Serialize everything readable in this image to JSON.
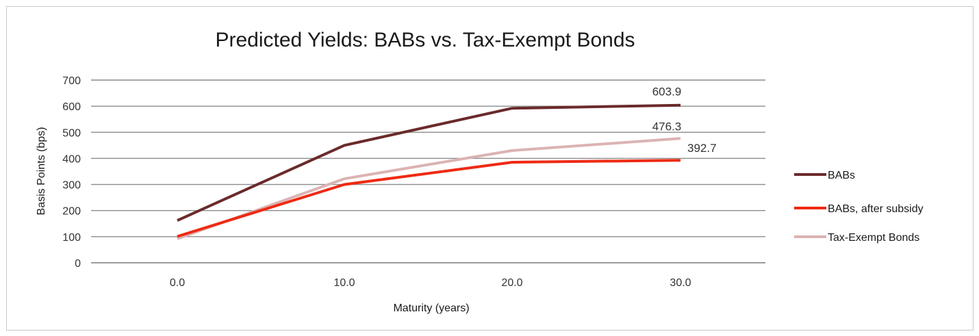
{
  "chart_data": {
    "type": "line",
    "title": "Predicted Yields: BABs vs. Tax-Exempt Bonds",
    "xlabel": "Maturity (years)",
    "ylabel": "Basis Points (bps)",
    "x": [
      0,
      10,
      20,
      30
    ],
    "x_tick_labels": [
      "0.0",
      "10.0",
      "20.0",
      "30.0"
    ],
    "y_ticks": [
      0,
      100,
      200,
      300,
      400,
      500,
      600,
      700
    ],
    "ylim": [
      0,
      700
    ],
    "grid": "horizontal",
    "legend_position": "right",
    "series": [
      {
        "name": "BABs",
        "color": "#6b2a2a",
        "values": [
          162,
          450,
          592,
          603.9
        ],
        "end_label": "603.9"
      },
      {
        "name": "BABs, after subsidy",
        "color": "#ee2a12",
        "values": [
          101,
          300,
          385,
          392.7
        ],
        "end_label": "392.7"
      },
      {
        "name": "Tax-Exempt Bonds",
        "color": "#dcb3b3",
        "values": [
          92,
          322,
          430,
          476.3
        ],
        "end_label": "476.3"
      }
    ]
  }
}
